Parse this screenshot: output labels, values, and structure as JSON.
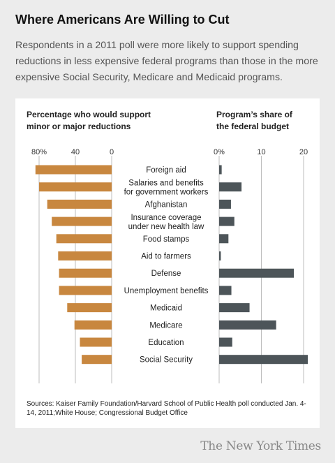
{
  "header": {
    "title": "Where Americans Are Willing to Cut",
    "subtitle": "Respondents in a 2011 poll were more likely to support spending reductions in less expensive federal programs than those in the more expensive Social Security, Medicare and Medicaid programs."
  },
  "colors": {
    "support_bar": "#c8873f",
    "budget_bar": "#4d5559",
    "gridline": "#bdbdbd",
    "panel": "#ffffff",
    "page": "#ececec"
  },
  "chart_data": [
    {
      "type": "bar",
      "orientation": "horizontal",
      "direction": "right-to-left",
      "title_lines": [
        "Percentage who would support",
        "minor or major reductions"
      ],
      "xlim": [
        0,
        90
      ],
      "ticks": [
        80,
        40,
        0
      ],
      "tick_labels": [
        "80%",
        "40",
        "0"
      ],
      "grid": true,
      "categories": [
        [
          "Foreign aid"
        ],
        [
          "Salaries and benefits",
          "for government workers"
        ],
        [
          "Afghanistan"
        ],
        [
          "Insurance coverage",
          "under new health law"
        ],
        [
          "Food stamps"
        ],
        [
          "Aid to farmers"
        ],
        [
          "Defense"
        ],
        [
          "Unemployment benefits"
        ],
        [
          "Medicaid"
        ],
        [
          "Medicare"
        ],
        [
          "Education"
        ],
        [
          "Social Security"
        ]
      ],
      "values": [
        84,
        80,
        71,
        66,
        61,
        59,
        58,
        58,
        49,
        41,
        35,
        33
      ]
    },
    {
      "type": "bar",
      "orientation": "horizontal",
      "direction": "left-to-right",
      "title_lines": [
        "Program’s share of",
        "the federal budget"
      ],
      "xlim": [
        0,
        21
      ],
      "ticks": [
        0,
        10,
        20
      ],
      "tick_labels": [
        "0%",
        "10",
        "20"
      ],
      "grid": true,
      "categories": [
        [
          "Foreign aid"
        ],
        [
          "Salaries and benefits",
          "for government workers"
        ],
        [
          "Afghanistan"
        ],
        [
          "Insurance coverage",
          "under new health law"
        ],
        [
          "Food stamps"
        ],
        [
          "Aid to farmers"
        ],
        [
          "Defense"
        ],
        [
          "Unemployment benefits"
        ],
        [
          "Medicaid"
        ],
        [
          "Medicare"
        ],
        [
          "Education"
        ],
        [
          "Social Security"
        ]
      ],
      "values": [
        0.6,
        5.3,
        2.8,
        3.6,
        2.2,
        0.4,
        17.7,
        2.9,
        7.2,
        13.5,
        3.1,
        21
      ]
    }
  ],
  "footer": {
    "source": "Sources: Kaiser Family Foundation/Harvard School of Public Health poll conducted Jan. 4-14, 2011;White House; Congressional Budget Office",
    "logo": "The New York Times"
  }
}
